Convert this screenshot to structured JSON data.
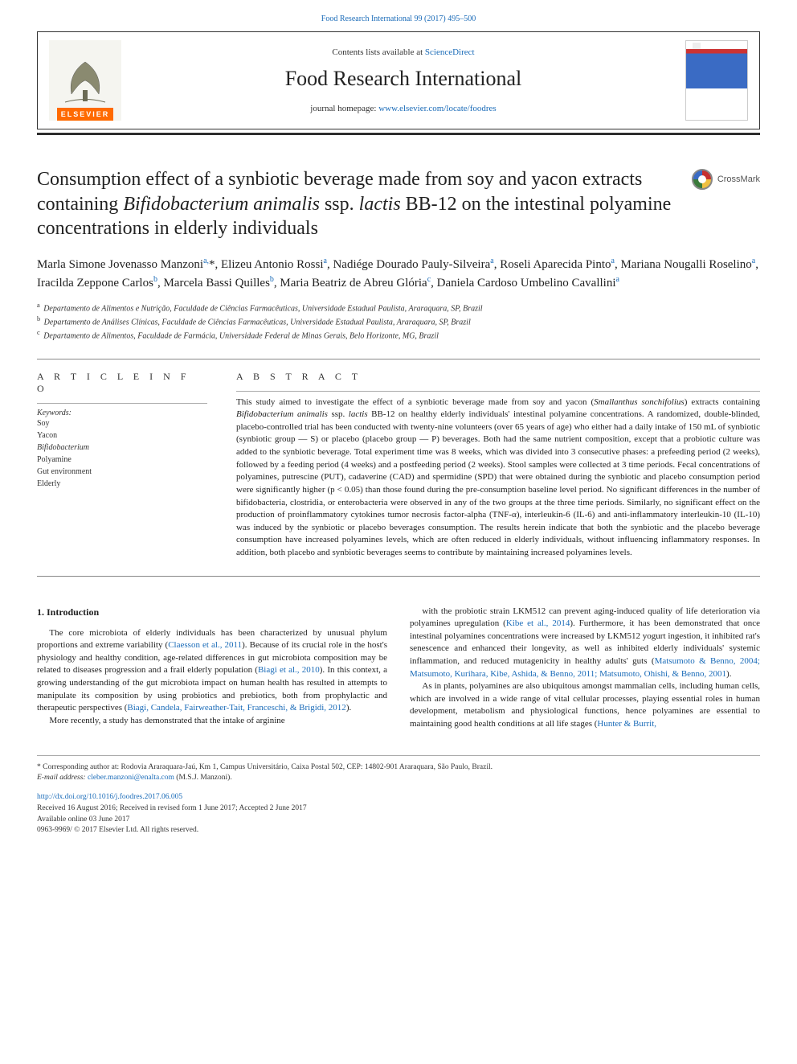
{
  "top_citation": "Food Research International 99 (2017) 495–500",
  "header": {
    "contents_prefix": "Contents lists available at ",
    "contents_link": "ScienceDirect",
    "journal_name": "Food Research International",
    "homepage_prefix": "journal homepage: ",
    "homepage_link": "www.elsevier.com/locate/foodres",
    "elsevier_label": "ELSEVIER",
    "cover_label": "FOOD RESEARCH INTERNATIONAL"
  },
  "crossmark_label": "CrossMark",
  "title_parts": {
    "t1": "Consumption effect of a synbiotic beverage made from soy and yacon extracts containing ",
    "t2_em": "Bifidobacterium animalis",
    "t3": " ssp. ",
    "t4_em": "lactis",
    "t5": " BB-12 on the intestinal polyamine concentrations in elderly individuals"
  },
  "authors_html": "Marla Simone Jovenasso Manzoni<sup>a,</sup>*, Elizeu Antonio Rossi<sup>a</sup>, Nadiége Dourado Pauly-Silveira<sup>a</sup>, Roseli Aparecida Pinto<sup>a</sup>, Mariana Nougalli Roselino<sup>a</sup>, Iracilda Zeppone Carlos<sup>b</sup>, Marcela Bassi Quilles<sup>b</sup>, Maria Beatriz de Abreu Glória<sup>c</sup>, Daniela Cardoso Umbelino Cavallini<sup>a</sup>",
  "affiliations": [
    {
      "sup": "a",
      "text": "Departamento de Alimentos e Nutrição, Faculdade de Ciências Farmacêuticas, Universidade Estadual Paulista, Araraquara, SP, Brazil"
    },
    {
      "sup": "b",
      "text": "Departamento de Análises Clínicas, Faculdade de Ciências Farmacêuticas, Universidade Estadual Paulista, Araraquara, SP, Brazil"
    },
    {
      "sup": "c",
      "text": "Departamento de Alimentos, Faculdade de Farmácia, Universidade Federal de Minas Gerais, Belo Horizonte, MG, Brazil"
    }
  ],
  "article_info_label": "A R T I C L E  I N F O",
  "abstract_label": "A B S T R A C T",
  "keywords_heading": "Keywords:",
  "keywords": [
    "Soy",
    "Yacon",
    "Bifidobacterium",
    "Polyamine",
    "Gut environment",
    "Elderly"
  ],
  "abstract": "This study aimed to investigate the effect of a synbiotic beverage made from soy and yacon (<em>Smallanthus sonchifolius</em>) extracts containing <em>Bifidobacterium animalis</em> ssp. <em>lactis</em> BB-12 on healthy elderly individuals' intestinal polyamine concentrations. A randomized, double-blinded, placebo-controlled trial has been conducted with twenty-nine volunteers (over 65 years of age) who either had a daily intake of 150 mL of synbiotic (synbiotic group — S) or placebo (placebo group — P) beverages. Both had the same nutrient composition, except that a probiotic culture was added to the synbiotic beverage. Total experiment time was 8 weeks, which was divided into 3 consecutive phases: a prefeeding period (2 weeks), followed by a feeding period (4 weeks) and a postfeeding period (2 weeks). Stool samples were collected at 3 time periods. Fecal concentrations of polyamines, putrescine (PUT), cadaverine (CAD) and spermidine (SPD) that were obtained during the synbiotic and placebo consumption period were significantly higher (p &lt; 0.05) than those found during the pre-consumption baseline level period. No significant differences in the number of bifidobacteria, clostridia, or enterobacteria were observed in any of the two groups at the three time periods. Similarly, no significant effect on the production of proinflammatory cytokines tumor necrosis factor-alpha (TNF-α), interleukin-6 (IL-6) and anti-inflammatory interleukin-10 (IL-10) was induced by the synbiotic or placebo beverages consumption. The results herein indicate that both the synbiotic and the placebo beverage consumption have increased polyamines levels, which are often reduced in elderly individuals, without influencing inflammatory responses. In addition, both placebo and synbiotic beverages seems to contribute by maintaining increased polyamines levels.",
  "intro_heading": "1. Introduction",
  "intro_left": "The core microbiota of elderly individuals has been characterized by unusual phylum proportions and extreme variability (<a class=\"ref\" href=\"#\">Claesson et al., 2011</a>). Because of its crucial role in the host's physiology and healthy condition, age-related differences in gut microbiota composition may be related to diseases progression and a frail elderly population (<a class=\"ref\" href=\"#\">Biagi et al., 2010</a>). In this context, a growing understanding of the gut microbiota impact on human health has resulted in attempts to manipulate its composition by using probiotics and prebiotics, both from prophylactic and therapeutic perspectives (<a class=\"ref\" href=\"#\">Biagi, Candela, Fairweather-Tait, Franceschi, & Brigidi, 2012</a>).",
  "intro_left_p2": "More recently, a study has demonstrated that the intake of arginine",
  "intro_right_p1": "with the probiotic strain LKM512 can prevent aging-induced quality of life deterioration via polyamines upregulation (<a class=\"ref\" href=\"#\">Kibe et al., 2014</a>). Furthermore, it has been demonstrated that once intestinal polyamines concentrations were increased by LKM512 yogurt ingestion, it inhibited rat's senescence and enhanced their longevity, as well as inhibited elderly individuals' systemic inflammation, and reduced mutagenicity in healthy adults' guts (<a class=\"ref\" href=\"#\">Matsumoto & Benno, 2004; Matsumoto, Kurihara, Kibe, Ashida, & Benno, 2011; Matsumoto, Ohishi, & Benno, 2001</a>).",
  "intro_right_p2": "As in plants, polyamines are also ubiquitous amongst mammalian cells, including human cells, which are involved in a wide range of vital cellular processes, playing essential roles in human development, metabolism and physiological functions, hence polyamines are essential to maintaining good health conditions at all life stages (<a class=\"ref\" href=\"#\">Hunter & Burrit,</a>",
  "footer": {
    "corr": "* Corresponding author at: Rodovia Araraquara-Jaú, Km 1, Campus Universitário, Caixa Postal 502, CEP: 14802-901 Araraquara, São Paulo, Brazil.",
    "email_label": "E-mail address: ",
    "email": "cleber.manzoni@enalta.com",
    "email_suffix": " (M.S.J. Manzoni).",
    "doi": "http://dx.doi.org/10.1016/j.foodres.2017.06.005",
    "received": "Received 16 August 2016; Received in revised form 1 June 2017; Accepted 2 June 2017",
    "available": "Available online 03 June 2017",
    "copyright": "0963-9969/ © 2017 Elsevier Ltd. All rights reserved."
  },
  "colors": {
    "link": "#1a6bb8",
    "elsevier_orange": "#ff6a00",
    "rule_dark": "#2d2d2d",
    "rule_thin": "#888888",
    "text": "#222222"
  },
  "typography": {
    "journal_name_pt": 26,
    "title_pt": 24,
    "authors_pt": 15,
    "body_pt": 11,
    "small_pt": 10,
    "footer_pt": 9.5
  }
}
